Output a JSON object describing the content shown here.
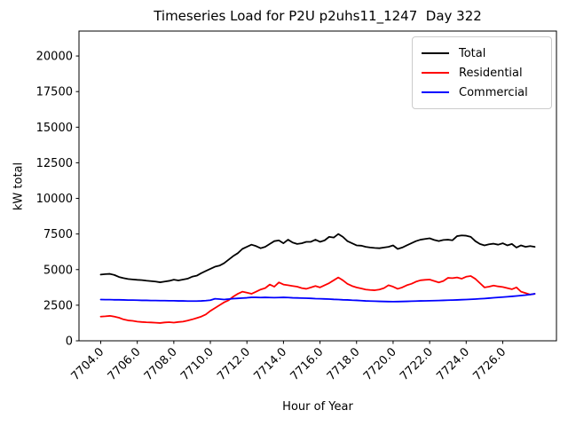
{
  "title": "Timeseries Load for P2U p2uhs11_1247  Day 322",
  "axes": {
    "xlabel": "Hour of Year",
    "ylabel": "kW total"
  },
  "colors": {
    "total": "#000000",
    "residential": "#ff0000",
    "commercial": "#0000ff",
    "spine": "#000000",
    "legend_border": "#cccccc",
    "background": "#ffffff"
  },
  "chart_data": {
    "type": "line",
    "title": "Timeseries Load for P2U p2uhs11_1247  Day 322",
    "xlabel": "Hour of Year",
    "ylabel": "kW total",
    "xlim": [
      7702.81,
      7728.94
    ],
    "ylim": [
      0,
      21750
    ],
    "xticks": [
      7704,
      7706,
      7708,
      7710,
      7712,
      7714,
      7716,
      7718,
      7720,
      7722,
      7724,
      7726
    ],
    "yticks": [
      0,
      2500,
      5000,
      7500,
      10000,
      12500,
      15000,
      17500,
      20000
    ],
    "xtick_label_rotation_deg": 45,
    "grid": false,
    "legend_position": "upper right",
    "legend_entries": [
      "Total",
      "Residential",
      "Commercial"
    ],
    "x_start": 7704.0,
    "x_step": 0.25,
    "series": [
      {
        "name": "Total",
        "color": "#000000",
        "values": [
          4650,
          4680,
          4700,
          4620,
          4480,
          4400,
          4340,
          4310,
          4280,
          4260,
          4220,
          4190,
          4160,
          4110,
          4160,
          4210,
          4290,
          4240,
          4300,
          4360,
          4500,
          4570,
          4750,
          4900,
          5050,
          5200,
          5280,
          5450,
          5700,
          5950,
          6150,
          6450,
          6600,
          6750,
          6650,
          6500,
          6600,
          6800,
          7000,
          7050,
          6850,
          7100,
          6900,
          6800,
          6850,
          6950,
          6950,
          7100,
          6950,
          7050,
          7300,
          7250,
          7500,
          7300,
          7000,
          6850,
          6700,
          6680,
          6600,
          6550,
          6520,
          6500,
          6550,
          6600,
          6700,
          6450,
          6550,
          6700,
          6850,
          7000,
          7100,
          7150,
          7200,
          7080,
          7000,
          7080,
          7100,
          7060,
          7350,
          7400,
          7380,
          7300,
          7000,
          6800,
          6700,
          6780,
          6820,
          6750,
          6850,
          6700,
          6800,
          6550,
          6700,
          6600,
          6650,
          6600
        ]
      },
      {
        "name": "Residential",
        "color": "#ff0000",
        "values": [
          1700,
          1720,
          1750,
          1700,
          1620,
          1500,
          1430,
          1400,
          1350,
          1320,
          1300,
          1290,
          1270,
          1250,
          1290,
          1310,
          1280,
          1320,
          1350,
          1420,
          1500,
          1600,
          1700,
          1850,
          2100,
          2300,
          2500,
          2700,
          2850,
          3100,
          3300,
          3450,
          3380,
          3300,
          3450,
          3600,
          3700,
          3950,
          3800,
          4100,
          3950,
          3900,
          3850,
          3800,
          3700,
          3650,
          3750,
          3850,
          3750,
          3900,
          4050,
          4250,
          4450,
          4250,
          4000,
          3850,
          3750,
          3680,
          3600,
          3570,
          3550,
          3600,
          3700,
          3900,
          3800,
          3650,
          3750,
          3900,
          4000,
          4150,
          4250,
          4280,
          4300,
          4200,
          4100,
          4200,
          4420,
          4400,
          4450,
          4360,
          4500,
          4550,
          4350,
          4050,
          3750,
          3800,
          3880,
          3820,
          3780,
          3700,
          3620,
          3750,
          3450,
          3350,
          3250,
          3300
        ]
      },
      {
        "name": "Commercial",
        "color": "#0000ff",
        "values": [
          2900,
          2890,
          2890,
          2880,
          2880,
          2870,
          2860,
          2860,
          2850,
          2840,
          2840,
          2830,
          2830,
          2820,
          2820,
          2810,
          2810,
          2800,
          2800,
          2790,
          2790,
          2790,
          2800,
          2820,
          2850,
          2950,
          2930,
          2900,
          2930,
          2960,
          2980,
          3000,
          3020,
          3050,
          3050,
          3040,
          3050,
          3040,
          3030,
          3040,
          3050,
          3040,
          3020,
          3010,
          3000,
          2990,
          2980,
          2960,
          2950,
          2940,
          2930,
          2910,
          2900,
          2880,
          2870,
          2850,
          2840,
          2820,
          2800,
          2790,
          2780,
          2770,
          2760,
          2755,
          2750,
          2755,
          2760,
          2770,
          2780,
          2790,
          2800,
          2805,
          2810,
          2820,
          2830,
          2840,
          2850,
          2860,
          2870,
          2885,
          2900,
          2915,
          2930,
          2950,
          2970,
          2995,
          3020,
          3045,
          3070,
          3095,
          3120,
          3150,
          3180,
          3210,
          3250,
          3300
        ]
      }
    ]
  }
}
